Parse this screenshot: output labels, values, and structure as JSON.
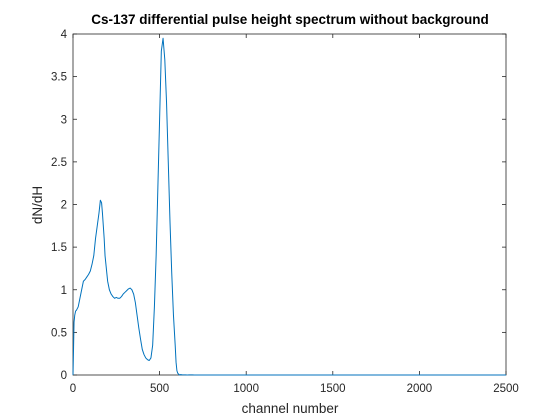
{
  "chart_data": {
    "type": "line",
    "title": "Cs-137 differential pulse height spectrum without background",
    "xlabel": "channel number",
    "ylabel": "dN/dH",
    "xlim": [
      0,
      2500
    ],
    "ylim": [
      0,
      4
    ],
    "xticks": [
      0,
      500,
      1000,
      1500,
      2000,
      2500
    ],
    "yticks": [
      0,
      0.5,
      1,
      1.5,
      2,
      2.5,
      3,
      3.5,
      4
    ],
    "xtick_labels": [
      "0",
      "500",
      "1000",
      "1500",
      "2000",
      "2500"
    ],
    "ytick_labels": [
      "0",
      "0.5",
      "1",
      "1.5",
      "2",
      "2.5",
      "3",
      "3.5",
      "4"
    ],
    "grid": false,
    "line_color": "#0072BD",
    "series": [
      {
        "x": [
          0,
          3,
          6,
          10,
          15,
          20,
          30,
          40,
          50,
          60,
          70,
          80,
          90,
          100,
          110,
          120,
          130,
          140,
          150,
          158,
          165,
          170,
          175,
          180,
          185,
          190,
          195,
          200,
          210,
          220,
          230,
          240,
          250,
          260,
          270,
          280,
          290,
          300,
          310,
          320,
          330,
          340,
          350,
          360,
          370,
          380,
          390,
          400,
          410,
          420,
          430,
          440,
          450,
          460,
          470,
          480,
          490,
          500,
          510,
          520,
          530,
          540,
          550,
          560,
          570,
          580,
          590,
          595,
          600,
          605,
          610,
          615,
          620,
          630,
          640,
          650,
          660,
          670,
          680,
          690,
          700,
          710,
          720,
          730,
          750,
          800,
          900,
          1000,
          1200,
          1400,
          1600,
          1800,
          2000,
          2100,
          2200,
          2500
        ],
        "y": [
          0,
          0.3,
          0.62,
          0.7,
          0.75,
          0.76,
          0.8,
          0.9,
          1.0,
          1.1,
          1.12,
          1.15,
          1.18,
          1.22,
          1.3,
          1.4,
          1.6,
          1.75,
          1.9,
          2.05,
          2.02,
          1.9,
          1.75,
          1.6,
          1.4,
          1.3,
          1.2,
          1.1,
          1.0,
          0.95,
          0.92,
          0.9,
          0.91,
          0.9,
          0.9,
          0.92,
          0.95,
          0.97,
          0.99,
          1.01,
          1.02,
          1.0,
          0.95,
          0.85,
          0.7,
          0.55,
          0.42,
          0.3,
          0.24,
          0.2,
          0.18,
          0.17,
          0.2,
          0.35,
          0.8,
          1.4,
          2.2,
          3.0,
          3.8,
          3.95,
          3.7,
          3.2,
          2.5,
          1.8,
          1.2,
          0.7,
          0.35,
          0.15,
          0.05,
          0.02,
          0.01,
          0,
          0.005,
          0.003,
          0.002,
          0.001,
          0,
          0.001,
          0.002,
          0.001,
          0,
          0,
          0,
          0,
          0,
          0,
          0,
          0,
          0,
          0,
          0,
          0,
          0,
          0,
          0,
          0
        ]
      }
    ]
  }
}
